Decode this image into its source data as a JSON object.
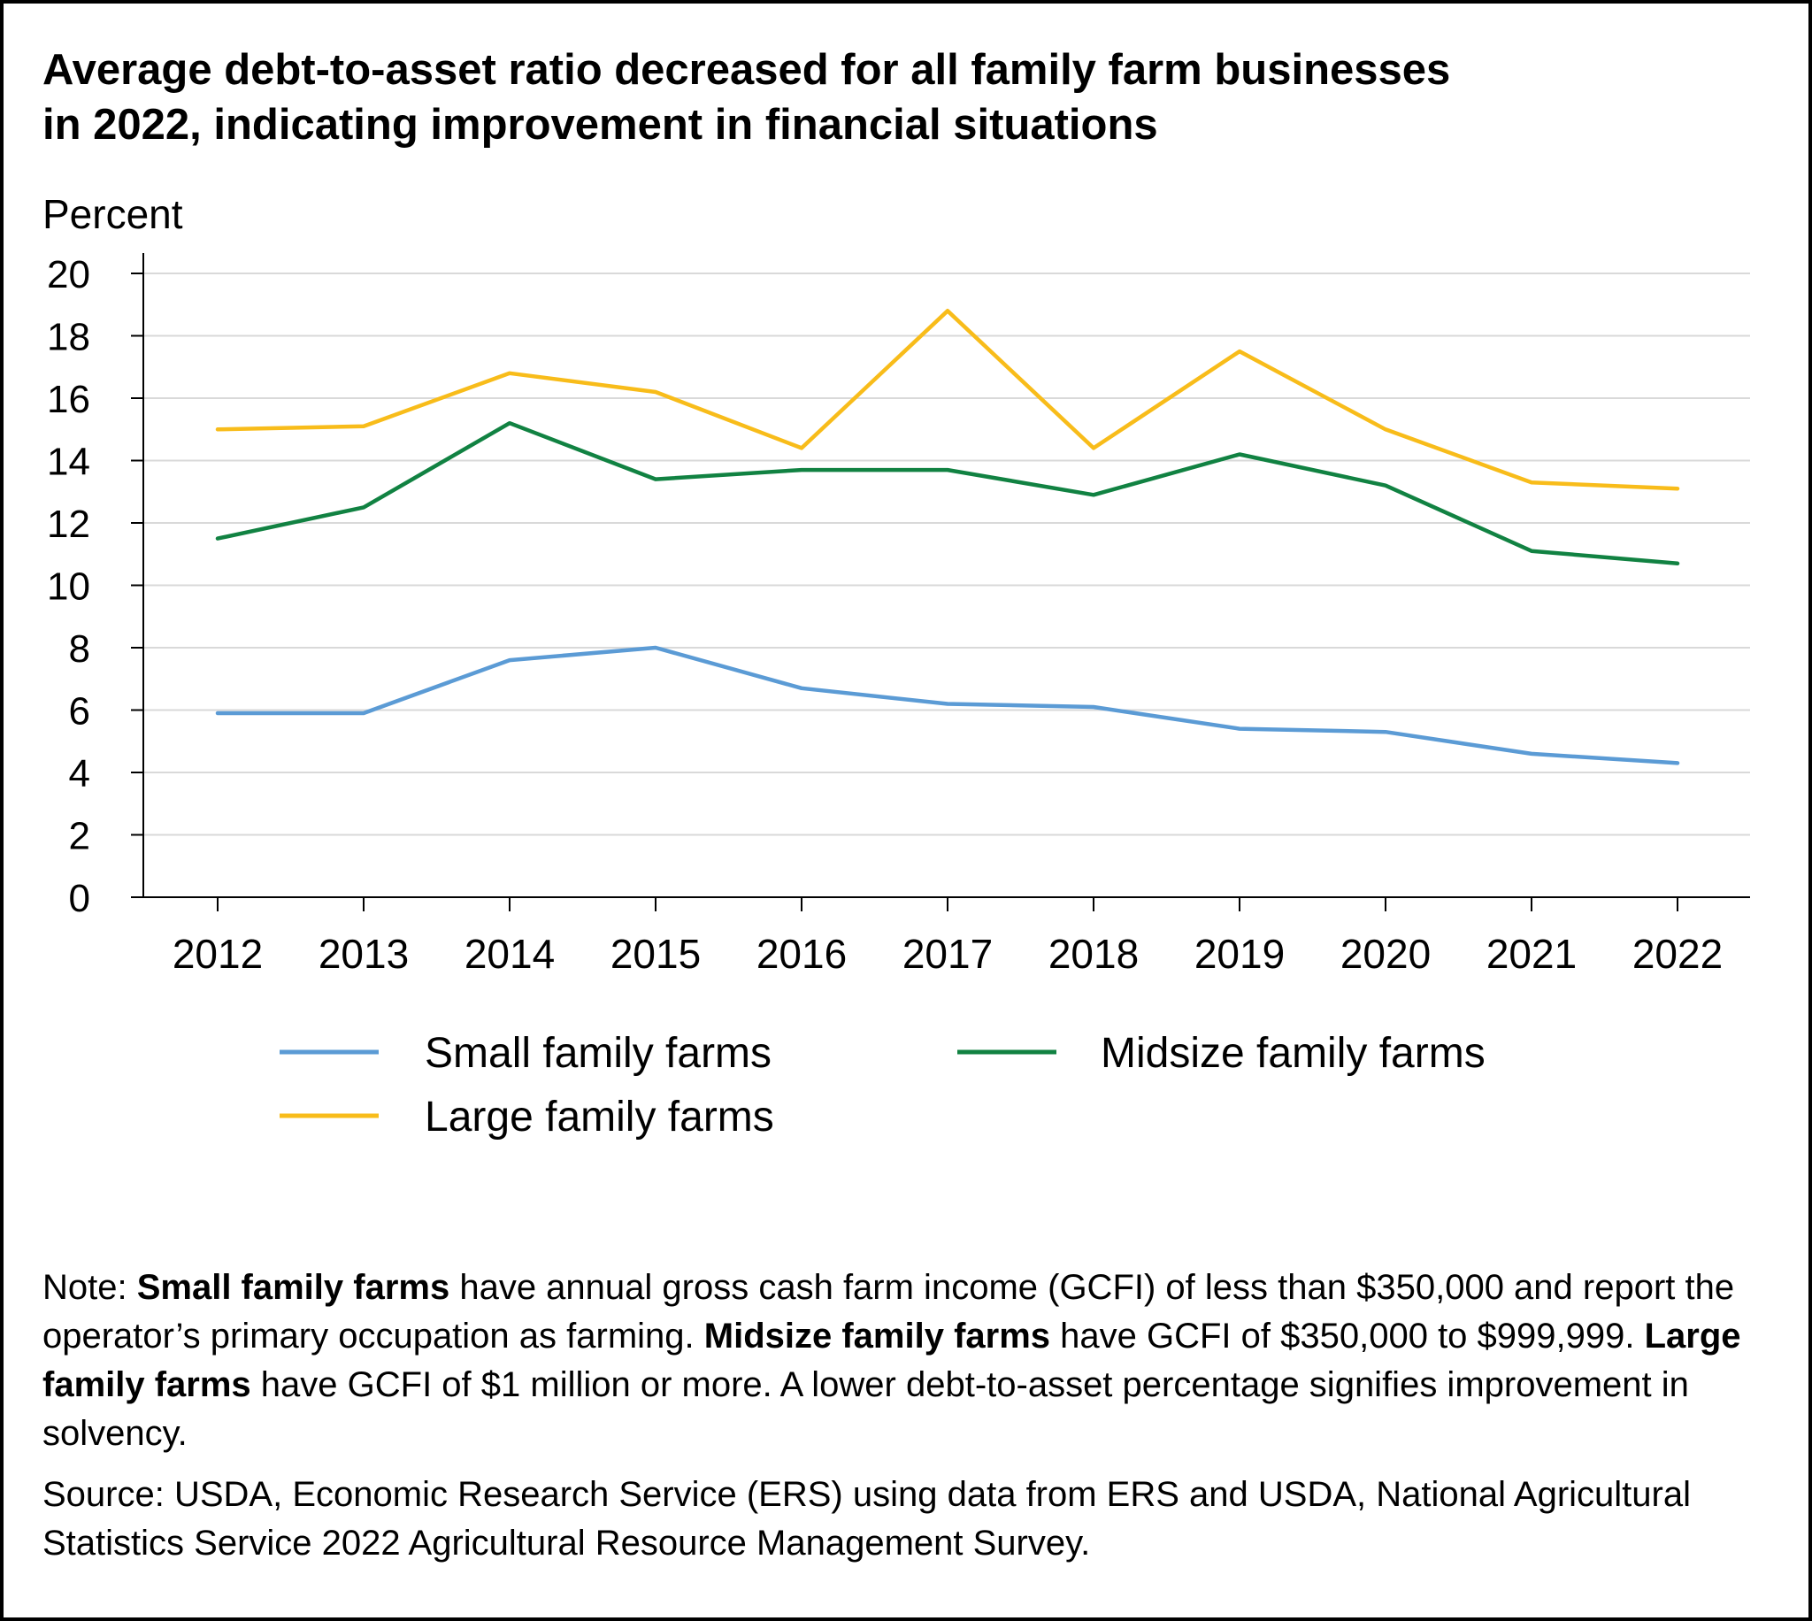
{
  "figure": {
    "title_line1": "Average debt-to-asset ratio decreased for all family farm businesses",
    "title_line2": "in 2022, indicating improvement in financial situations"
  },
  "chart_data": {
    "type": "line",
    "ylabel": "Percent",
    "ylim": [
      0,
      20
    ],
    "yticks": [
      0,
      2,
      4,
      6,
      8,
      10,
      12,
      14,
      16,
      18,
      20
    ],
    "grid": "horizontal",
    "legend_placement": "bottom",
    "categories": [
      "2012",
      "2013",
      "2014",
      "2015",
      "2016",
      "2017",
      "2018",
      "2019",
      "2020",
      "2021",
      "2022"
    ],
    "series": [
      {
        "name": "Small family farms",
        "color": "#5b9bd5",
        "values": [
          5.9,
          5.9,
          7.6,
          8.0,
          6.7,
          6.2,
          6.1,
          5.4,
          5.3,
          4.6,
          4.3
        ]
      },
      {
        "name": "Midsize family farms",
        "color": "#118242",
        "values": [
          11.5,
          12.5,
          15.2,
          13.4,
          13.7,
          13.7,
          12.9,
          14.2,
          13.2,
          11.1,
          10.7
        ]
      },
      {
        "name": "Large family farms",
        "color": "#f8bc1a",
        "values": [
          15.0,
          15.1,
          16.8,
          16.2,
          14.4,
          18.8,
          14.4,
          17.5,
          15.0,
          13.3,
          13.1
        ]
      }
    ]
  },
  "note": {
    "prefix": "Note: ",
    "small_term": "Small family farms",
    "small_text": " have annual gross cash farm income (GCFI) of less than $350,000 and report the operator’s primary occupation as farming. ",
    "midsize_term": "Midsize family farms",
    "midsize_text": " have GCFI of $350,000 to $999,999. ",
    "large_term": "Large family farms",
    "large_text": " have GCFI of $1 million or more. A lower debt-to-asset percentage signifies improvement in solvency."
  },
  "source": {
    "text": "Source: USDA, Economic Research Service (ERS) using data from ERS and USDA, National Agricultural Statistics Service 2022 Agricultural Resource Management Survey."
  }
}
